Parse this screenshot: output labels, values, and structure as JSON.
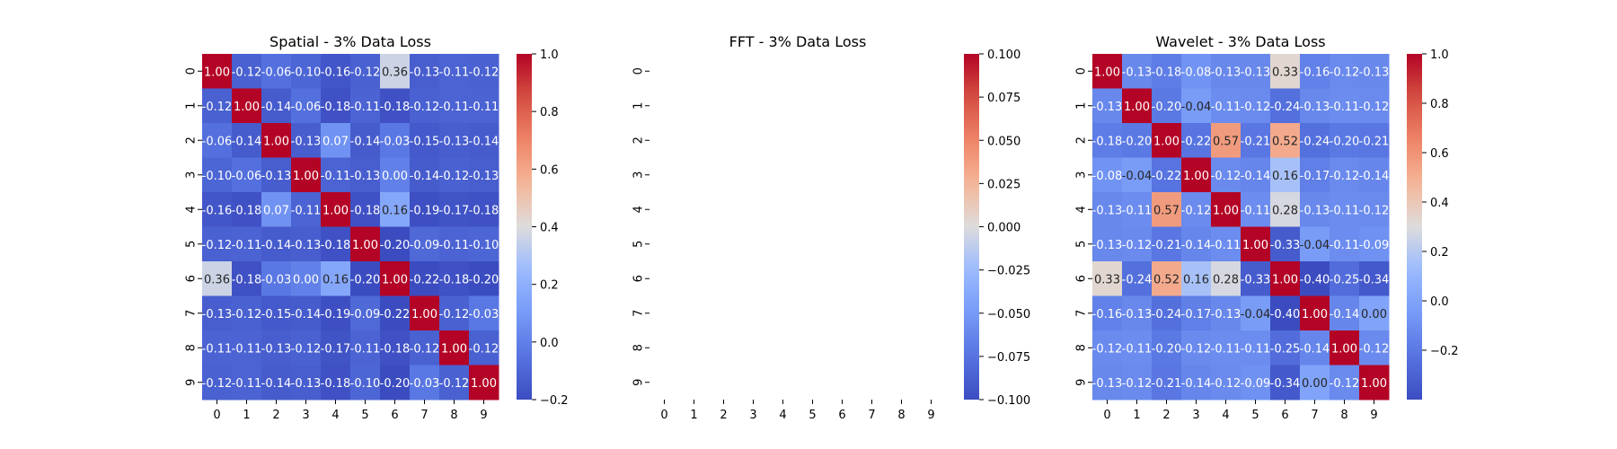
{
  "chart_data": [
    {
      "type": "heatmap",
      "title": "Spatial - 3% Data Loss",
      "xlabel": "",
      "ylabel": "",
      "x_ticks": [
        "0",
        "1",
        "2",
        "3",
        "4",
        "5",
        "6",
        "7",
        "8",
        "9"
      ],
      "y_ticks": [
        "0",
        "1",
        "2",
        "3",
        "4",
        "5",
        "6",
        "7",
        "8",
        "9"
      ],
      "annotated": true,
      "colormap": "coolwarm",
      "color_range": [
        -0.2,
        1.0
      ],
      "colorbar_ticks": [
        -0.2,
        0.0,
        0.2,
        0.4,
        0.6,
        0.8,
        1.0
      ],
      "colorbar_tick_labels": [
        "−0.2",
        "0.0",
        "0.2",
        "0.4",
        "0.6",
        "0.8",
        "1.0"
      ],
      "values": [
        [
          1.0,
          -0.12,
          -0.06,
          -0.1,
          -0.16,
          -0.12,
          0.36,
          -0.13,
          -0.11,
          -0.12
        ],
        [
          -0.12,
          1.0,
          -0.14,
          -0.06,
          -0.18,
          -0.11,
          -0.18,
          -0.12,
          -0.11,
          -0.11
        ],
        [
          -0.06,
          -0.14,
          1.0,
          -0.13,
          0.07,
          -0.14,
          -0.03,
          -0.15,
          -0.13,
          -0.14
        ],
        [
          -0.1,
          -0.06,
          -0.13,
          1.0,
          -0.11,
          -0.13,
          0.0,
          -0.14,
          -0.12,
          -0.13
        ],
        [
          -0.16,
          -0.18,
          0.07,
          -0.11,
          1.0,
          -0.18,
          0.16,
          -0.19,
          -0.17,
          -0.18
        ],
        [
          -0.12,
          -0.11,
          -0.14,
          -0.13,
          -0.18,
          1.0,
          -0.2,
          -0.09,
          -0.11,
          -0.1
        ],
        [
          0.36,
          -0.18,
          -0.03,
          0.0,
          0.16,
          -0.2,
          1.0,
          -0.22,
          -0.18,
          -0.2
        ],
        [
          -0.13,
          -0.12,
          -0.15,
          -0.14,
          -0.19,
          -0.09,
          -0.22,
          1.0,
          -0.12,
          -0.03
        ],
        [
          -0.11,
          -0.11,
          -0.13,
          -0.12,
          -0.17,
          -0.11,
          -0.18,
          -0.12,
          1.0,
          -0.12
        ],
        [
          -0.12,
          -0.11,
          -0.14,
          -0.13,
          -0.18,
          -0.1,
          -0.2,
          -0.03,
          -0.12,
          1.0
        ]
      ]
    },
    {
      "type": "heatmap",
      "title": "FFT - 3% Data Loss",
      "xlabel": "",
      "ylabel": "",
      "x_ticks": [
        "0",
        "1",
        "2",
        "3",
        "4",
        "5",
        "6",
        "7",
        "8",
        "9"
      ],
      "y_ticks": [
        "0",
        "1",
        "2",
        "3",
        "4",
        "5",
        "6",
        "7",
        "8",
        "9"
      ],
      "annotated": false,
      "colormap": "coolwarm",
      "color_range": [
        -0.1,
        0.1
      ],
      "colorbar_ticks": [
        -0.1,
        -0.075,
        -0.05,
        -0.025,
        0.0,
        0.025,
        0.05,
        0.075,
        0.1
      ],
      "colorbar_tick_labels": [
        "−0.100",
        "−0.075",
        "−0.050",
        "−0.025",
        "0.000",
        "0.025",
        "0.050",
        "0.075",
        "0.100"
      ],
      "values": null
    },
    {
      "type": "heatmap",
      "title": "Wavelet - 3% Data Loss",
      "xlabel": "",
      "ylabel": "",
      "x_ticks": [
        "0",
        "1",
        "2",
        "3",
        "4",
        "5",
        "6",
        "7",
        "8",
        "9"
      ],
      "y_ticks": [
        "0",
        "1",
        "2",
        "3",
        "4",
        "5",
        "6",
        "7",
        "8",
        "9"
      ],
      "annotated": true,
      "colormap": "coolwarm",
      "color_range": [
        -0.4,
        1.0
      ],
      "colorbar_ticks": [
        -0.2,
        0.0,
        0.2,
        0.4,
        0.6,
        0.8,
        1.0
      ],
      "colorbar_tick_labels": [
        "−0.2",
        "0.0",
        "0.2",
        "0.4",
        "0.6",
        "0.8",
        "1.0"
      ],
      "values": [
        [
          1.0,
          -0.13,
          -0.18,
          -0.08,
          -0.13,
          -0.13,
          0.33,
          -0.16,
          -0.12,
          -0.13
        ],
        [
          -0.13,
          1.0,
          -0.2,
          -0.04,
          -0.11,
          -0.12,
          -0.24,
          -0.13,
          -0.11,
          -0.12
        ],
        [
          -0.18,
          -0.2,
          1.0,
          -0.22,
          0.57,
          -0.21,
          0.52,
          -0.24,
          -0.2,
          -0.21
        ],
        [
          -0.08,
          -0.04,
          -0.22,
          1.0,
          -0.12,
          -0.14,
          0.16,
          -0.17,
          -0.12,
          -0.14
        ],
        [
          -0.13,
          -0.11,
          0.57,
          -0.12,
          1.0,
          -0.11,
          0.28,
          -0.13,
          -0.11,
          -0.12
        ],
        [
          -0.13,
          -0.12,
          -0.21,
          -0.14,
          -0.11,
          1.0,
          -0.33,
          -0.04,
          -0.11,
          -0.09
        ],
        [
          0.33,
          -0.24,
          0.52,
          0.16,
          0.28,
          -0.33,
          1.0,
          -0.4,
          -0.25,
          -0.34
        ],
        [
          -0.16,
          -0.13,
          -0.24,
          -0.17,
          -0.13,
          -0.04,
          -0.4,
          1.0,
          -0.14,
          -0.0
        ],
        [
          -0.12,
          -0.11,
          -0.2,
          -0.12,
          -0.11,
          -0.11,
          -0.25,
          -0.14,
          1.0,
          -0.12
        ],
        [
          -0.13,
          -0.12,
          -0.21,
          -0.14,
          -0.12,
          -0.09,
          -0.34,
          -0.0,
          -0.12,
          1.0
        ]
      ]
    }
  ]
}
